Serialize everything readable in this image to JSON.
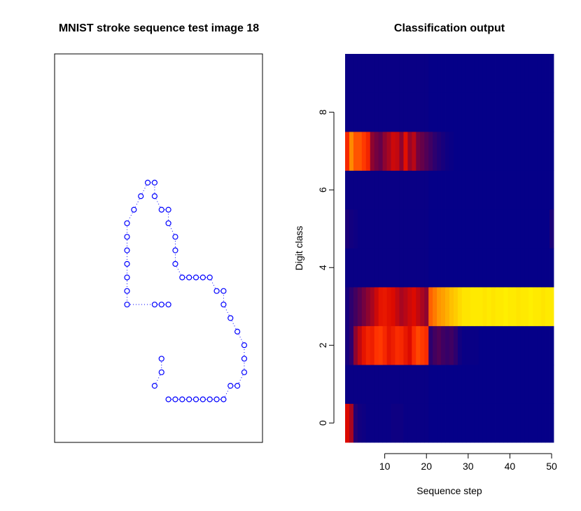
{
  "chart_data": [
    {
      "type": "scatter",
      "title": "MNIST stroke sequence test image 18",
      "color": "#0000ff",
      "marker": "open-circle",
      "line": "dotted",
      "axes": false,
      "xlim": [
        0,
        28
      ],
      "ylim": [
        0,
        28
      ],
      "points": [
        [
          11,
          3
        ],
        [
          12,
          3
        ],
        [
          13,
          3
        ],
        [
          14,
          3
        ],
        [
          15,
          3
        ],
        [
          16,
          3
        ],
        [
          17,
          3
        ],
        [
          18,
          3
        ],
        [
          19,
          3
        ],
        [
          20,
          4
        ],
        [
          21,
          4
        ],
        [
          22,
          5
        ],
        [
          22,
          6
        ],
        [
          22,
          7
        ],
        [
          21,
          8
        ],
        [
          20,
          9
        ],
        [
          19,
          10
        ],
        [
          19,
          11
        ],
        [
          18,
          11
        ],
        [
          17,
          12
        ],
        [
          16,
          12
        ],
        [
          15,
          12
        ],
        [
          14,
          12
        ],
        [
          13,
          12
        ],
        [
          12,
          13
        ],
        [
          12,
          14
        ],
        [
          12,
          15
        ],
        [
          11,
          16
        ],
        [
          11,
          17
        ],
        [
          10,
          17
        ],
        [
          9,
          18
        ],
        [
          9,
          19
        ],
        [
          8,
          19
        ],
        [
          7,
          18
        ],
        [
          6,
          17
        ],
        [
          5,
          16
        ],
        [
          5,
          15
        ],
        [
          5,
          14
        ],
        [
          5,
          13
        ],
        [
          5,
          12
        ],
        [
          5,
          11
        ],
        [
          5,
          10
        ],
        [
          9,
          10
        ],
        [
          10,
          10
        ],
        [
          11,
          10
        ],
        [
          10,
          6
        ],
        [
          10,
          5
        ],
        [
          9,
          4
        ]
      ]
    },
    {
      "type": "heatmap",
      "title": "Classification output",
      "xlabel": "Sequence step",
      "ylabel": "Digit class",
      "xlim": [
        0.5,
        50.5
      ],
      "ylim": [
        -0.5,
        9.5
      ],
      "xticks": [
        10,
        20,
        30,
        40,
        50
      ],
      "yticks": [
        0,
        2,
        4,
        6,
        8
      ],
      "colormap": "heat",
      "steps": 50,
      "classes": [
        0,
        1,
        2,
        3,
        4,
        5,
        6,
        7,
        8,
        9
      ],
      "values": [
        [
          0.45,
          0.35,
          0.08,
          0.04,
          0.03,
          0.02,
          0.02,
          0.02,
          0.02,
          0.02,
          0.02,
          0.03,
          0.03,
          0.03,
          0.02,
          0.02,
          0.02,
          0.02,
          0.02,
          0.02,
          0.01,
          0.01,
          0.01,
          0.01,
          0.01,
          0.01,
          0.01,
          0.01,
          0.01,
          0.01,
          0.01,
          0.01,
          0.01,
          0.01,
          0.01,
          0.01,
          0.01,
          0.01,
          0.01,
          0.01,
          0.01,
          0.01,
          0.01,
          0.01,
          0.01,
          0.01,
          0.01,
          0.01,
          0.01,
          0.01
        ],
        [
          0.02,
          0.02,
          0.02,
          0.02,
          0.02,
          0.02,
          0.02,
          0.02,
          0.02,
          0.02,
          0.02,
          0.02,
          0.02,
          0.02,
          0.02,
          0.02,
          0.02,
          0.02,
          0.02,
          0.02,
          0.01,
          0.01,
          0.01,
          0.01,
          0.01,
          0.01,
          0.01,
          0.01,
          0.01,
          0.01,
          0.01,
          0.01,
          0.01,
          0.01,
          0.01,
          0.01,
          0.01,
          0.01,
          0.01,
          0.01,
          0.01,
          0.01,
          0.01,
          0.01,
          0.01,
          0.01,
          0.01,
          0.01,
          0.01,
          0.01
        ],
        [
          0.05,
          0.1,
          0.3,
          0.4,
          0.5,
          0.58,
          0.55,
          0.65,
          0.66,
          0.6,
          0.5,
          0.55,
          0.62,
          0.6,
          0.52,
          0.45,
          0.62,
          0.68,
          0.66,
          0.62,
          0.1,
          0.15,
          0.18,
          0.14,
          0.12,
          0.14,
          0.1,
          0.04,
          0.02,
          0.02,
          0.02,
          0.02,
          0.01,
          0.01,
          0.01,
          0.01,
          0.01,
          0.01,
          0.01,
          0.01,
          0.01,
          0.01,
          0.01,
          0.01,
          0.01,
          0.01,
          0.01,
          0.01,
          0.01,
          0.01
        ],
        [
          0.05,
          0.1,
          0.15,
          0.2,
          0.25,
          0.3,
          0.35,
          0.42,
          0.5,
          0.52,
          0.48,
          0.45,
          0.4,
          0.35,
          0.38,
          0.42,
          0.45,
          0.4,
          0.35,
          0.3,
          0.72,
          0.76,
          0.8,
          0.82,
          0.85,
          0.88,
          0.9,
          0.93,
          0.95,
          0.95,
          0.96,
          0.96,
          0.96,
          0.95,
          0.96,
          0.95,
          0.96,
          0.96,
          0.97,
          0.96,
          0.96,
          0.95,
          0.96,
          0.96,
          0.97,
          0.96,
          0.96,
          0.95,
          0.96,
          0.96
        ],
        [
          0.02,
          0.02,
          0.02,
          0.02,
          0.02,
          0.02,
          0.02,
          0.02,
          0.02,
          0.02,
          0.02,
          0.02,
          0.02,
          0.02,
          0.02,
          0.02,
          0.02,
          0.02,
          0.02,
          0.02,
          0.01,
          0.01,
          0.01,
          0.01,
          0.01,
          0.01,
          0.01,
          0.01,
          0.01,
          0.01,
          0.01,
          0.01,
          0.01,
          0.01,
          0.01,
          0.01,
          0.01,
          0.01,
          0.01,
          0.01,
          0.01,
          0.01,
          0.01,
          0.01,
          0.01,
          0.01,
          0.01,
          0.01,
          0.01,
          0.01
        ],
        [
          0.06,
          0.04,
          0.03,
          0.02,
          0.02,
          0.02,
          0.02,
          0.02,
          0.02,
          0.02,
          0.02,
          0.02,
          0.02,
          0.02,
          0.02,
          0.02,
          0.02,
          0.02,
          0.02,
          0.02,
          0.01,
          0.01,
          0.01,
          0.01,
          0.01,
          0.01,
          0.01,
          0.01,
          0.01,
          0.01,
          0.01,
          0.01,
          0.01,
          0.01,
          0.01,
          0.01,
          0.01,
          0.01,
          0.01,
          0.01,
          0.01,
          0.01,
          0.01,
          0.01,
          0.01,
          0.01,
          0.01,
          0.01,
          0.01,
          0.06
        ],
        [
          0.02,
          0.02,
          0.02,
          0.02,
          0.02,
          0.02,
          0.02,
          0.02,
          0.02,
          0.02,
          0.02,
          0.02,
          0.02,
          0.02,
          0.02,
          0.02,
          0.02,
          0.02,
          0.02,
          0.02,
          0.01,
          0.01,
          0.01,
          0.01,
          0.01,
          0.01,
          0.01,
          0.01,
          0.01,
          0.01,
          0.01,
          0.01,
          0.01,
          0.01,
          0.01,
          0.01,
          0.01,
          0.01,
          0.01,
          0.01,
          0.01,
          0.01,
          0.01,
          0.01,
          0.01,
          0.01,
          0.01,
          0.01,
          0.01,
          0.01
        ],
        [
          0.6,
          0.78,
          0.7,
          0.7,
          0.66,
          0.58,
          0.3,
          0.25,
          0.22,
          0.3,
          0.35,
          0.42,
          0.4,
          0.3,
          0.48,
          0.32,
          0.38,
          0.25,
          0.22,
          0.18,
          0.14,
          0.1,
          0.07,
          0.05,
          0.03,
          0.02,
          0.01,
          0.01,
          0.01,
          0.01,
          0.01,
          0.01,
          0.01,
          0.01,
          0.01,
          0.01,
          0.01,
          0.01,
          0.01,
          0.01,
          0.01,
          0.01,
          0.01,
          0.01,
          0.01,
          0.01,
          0.01,
          0.01,
          0.01,
          0.01
        ],
        [
          0.02,
          0.02,
          0.02,
          0.02,
          0.02,
          0.02,
          0.02,
          0.02,
          0.02,
          0.02,
          0.02,
          0.02,
          0.02,
          0.02,
          0.02,
          0.02,
          0.02,
          0.02,
          0.02,
          0.02,
          0.01,
          0.01,
          0.01,
          0.01,
          0.01,
          0.01,
          0.01,
          0.01,
          0.01,
          0.01,
          0.01,
          0.01,
          0.01,
          0.01,
          0.01,
          0.01,
          0.01,
          0.01,
          0.01,
          0.01,
          0.01,
          0.01,
          0.01,
          0.01,
          0.01,
          0.01,
          0.01,
          0.01,
          0.01,
          0.01
        ],
        [
          0.02,
          0.02,
          0.02,
          0.02,
          0.02,
          0.02,
          0.02,
          0.02,
          0.02,
          0.02,
          0.02,
          0.02,
          0.02,
          0.02,
          0.02,
          0.02,
          0.02,
          0.02,
          0.02,
          0.02,
          0.01,
          0.01,
          0.01,
          0.01,
          0.01,
          0.01,
          0.01,
          0.01,
          0.01,
          0.01,
          0.01,
          0.01,
          0.01,
          0.01,
          0.01,
          0.01,
          0.01,
          0.01,
          0.01,
          0.01,
          0.01,
          0.01,
          0.01,
          0.01,
          0.01,
          0.01,
          0.01,
          0.01,
          0.01,
          0.01
        ]
      ]
    }
  ]
}
